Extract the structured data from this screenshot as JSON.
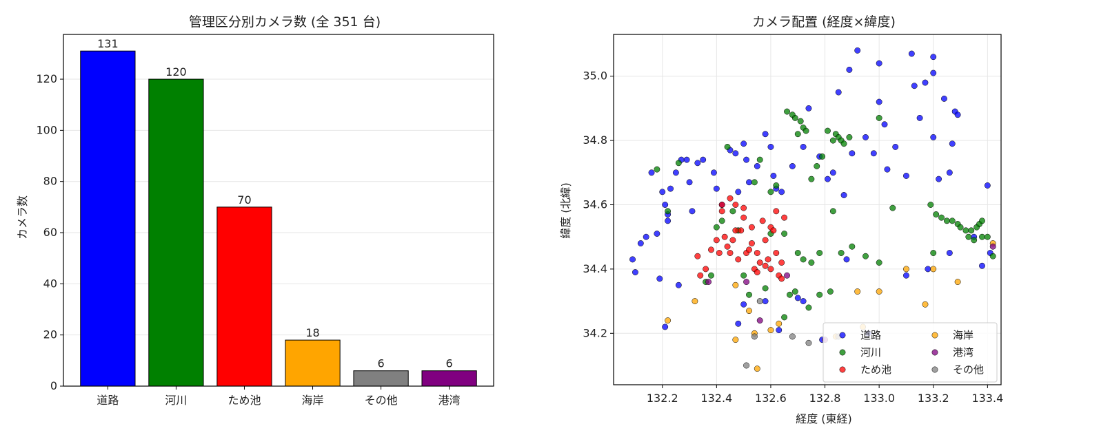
{
  "chart_data": [
    {
      "type": "bar",
      "title": "管理区分別カメラ数 (全 351 台)",
      "xlabel": "",
      "ylabel": "カメラ数",
      "categories": [
        "道路",
        "河川",
        "ため池",
        "海岸",
        "その他",
        "港湾"
      ],
      "values": [
        131,
        120,
        70,
        18,
        6,
        6
      ],
      "colors": [
        "#0000ff",
        "#008000",
        "#ff0000",
        "#ffa500",
        "#808080",
        "#800080"
      ],
      "ylim": [
        0,
        137.5
      ],
      "yticks": [
        0,
        20,
        40,
        60,
        80,
        100,
        120
      ],
      "grid": "y"
    },
    {
      "type": "scatter",
      "title": "カメラ配置 (経度×緯度)",
      "xlabel": "経度 (東経)",
      "ylabel": "緯度 (北緯)",
      "xlim": [
        132.02,
        133.45
      ],
      "ylim": [
        34.04,
        35.13
      ],
      "xticks": [
        132.2,
        132.4,
        132.6,
        132.8,
        133.0,
        133.2,
        133.4
      ],
      "yticks": [
        34.2,
        34.4,
        34.6,
        34.8,
        35.0
      ],
      "xtick_labels": [
        "132.2",
        "132.4",
        "132.6",
        "132.8",
        "133.0",
        "133.2",
        "133.4"
      ],
      "ytick_labels": [
        "34.2",
        "34.4",
        "34.6",
        "34.8",
        "35.0"
      ],
      "grid": "both",
      "legend_position": "lower-right",
      "series": [
        {
          "name": "道路",
          "color": "#0000ff",
          "points": [
            [
              132.09,
              34.43
            ],
            [
              132.1,
              34.39
            ],
            [
              132.12,
              34.48
            ],
            [
              132.14,
              34.5
            ],
            [
              132.16,
              34.7
            ],
            [
              132.18,
              34.51
            ],
            [
              132.2,
              34.64
            ],
            [
              132.21,
              34.6
            ],
            [
              132.22,
              34.57
            ],
            [
              132.22,
              34.55
            ],
            [
              132.23,
              34.65
            ],
            [
              132.25,
              34.7
            ],
            [
              132.27,
              34.74
            ],
            [
              132.29,
              34.74
            ],
            [
              132.3,
              34.67
            ],
            [
              132.31,
              34.58
            ],
            [
              132.33,
              34.73
            ],
            [
              132.35,
              34.74
            ],
            [
              132.39,
              34.7
            ],
            [
              132.4,
              34.65
            ],
            [
              132.42,
              34.6
            ],
            [
              132.45,
              34.77
            ],
            [
              132.47,
              34.76
            ],
            [
              132.48,
              34.64
            ],
            [
              132.5,
              34.79
            ],
            [
              132.51,
              34.74
            ],
            [
              132.52,
              34.67
            ],
            [
              132.55,
              34.72
            ],
            [
              132.58,
              34.82
            ],
            [
              132.6,
              34.78
            ],
            [
              132.61,
              34.69
            ],
            [
              132.62,
              34.65
            ],
            [
              132.64,
              34.64
            ],
            [
              132.68,
              34.72
            ],
            [
              132.72,
              34.78
            ],
            [
              132.74,
              34.9
            ],
            [
              132.78,
              34.75
            ],
            [
              132.81,
              34.68
            ],
            [
              132.83,
              34.7
            ],
            [
              132.85,
              34.95
            ],
            [
              132.87,
              34.63
            ],
            [
              132.89,
              35.02
            ],
            [
              132.9,
              34.76
            ],
            [
              132.92,
              35.08
            ],
            [
              132.95,
              34.81
            ],
            [
              132.98,
              34.76
            ],
            [
              133.0,
              35.04
            ],
            [
              133.0,
              34.92
            ],
            [
              133.02,
              34.85
            ],
            [
              133.03,
              34.71
            ],
            [
              133.06,
              34.78
            ],
            [
              133.1,
              34.69
            ],
            [
              133.12,
              35.07
            ],
            [
              133.13,
              34.97
            ],
            [
              133.15,
              34.87
            ],
            [
              133.17,
              34.98
            ],
            [
              133.2,
              35.06
            ],
            [
              133.2,
              35.01
            ],
            [
              133.2,
              34.81
            ],
            [
              133.22,
              34.68
            ],
            [
              133.24,
              34.93
            ],
            [
              133.26,
              34.7
            ],
            [
              133.27,
              34.79
            ],
            [
              133.28,
              34.89
            ],
            [
              133.29,
              34.88
            ],
            [
              133.35,
              34.5
            ],
            [
              133.38,
              34.41
            ],
            [
              133.4,
              34.66
            ],
            [
              133.41,
              34.45
            ],
            [
              132.26,
              34.35
            ],
            [
              132.19,
              34.37
            ],
            [
              132.21,
              34.22
            ],
            [
              132.48,
              34.23
            ],
            [
              132.5,
              34.29
            ],
            [
              132.58,
              34.3
            ],
            [
              132.63,
              34.21
            ],
            [
              132.7,
              34.31
            ],
            [
              132.72,
              34.3
            ],
            [
              132.79,
              34.18
            ],
            [
              132.88,
              34.43
            ],
            [
              132.96,
              34.2
            ],
            [
              133.1,
              34.38
            ],
            [
              133.18,
              34.4
            ],
            [
              133.26,
              34.45
            ]
          ]
        },
        {
          "name": "河川",
          "color": "#008000",
          "points": [
            [
              132.18,
              34.71
            ],
            [
              132.22,
              34.58
            ],
            [
              132.26,
              34.73
            ],
            [
              132.36,
              34.36
            ],
            [
              132.4,
              34.53
            ],
            [
              132.42,
              34.55
            ],
            [
              132.44,
              34.78
            ],
            [
              132.46,
              34.58
            ],
            [
              132.48,
              34.52
            ],
            [
              132.5,
              34.38
            ],
            [
              132.52,
              34.32
            ],
            [
              132.54,
              34.67
            ],
            [
              132.56,
              34.74
            ],
            [
              132.58,
              34.34
            ],
            [
              132.6,
              34.64
            ],
            [
              132.62,
              34.66
            ],
            [
              132.65,
              34.51
            ],
            [
              132.66,
              34.89
            ],
            [
              132.68,
              34.88
            ],
            [
              132.69,
              34.87
            ],
            [
              132.7,
              34.82
            ],
            [
              132.71,
              34.86
            ],
            [
              132.72,
              34.84
            ],
            [
              132.73,
              34.83
            ],
            [
              132.75,
              34.68
            ],
            [
              132.77,
              34.72
            ],
            [
              132.79,
              34.75
            ],
            [
              132.81,
              34.83
            ],
            [
              132.83,
              34.8
            ],
            [
              132.84,
              34.82
            ],
            [
              132.85,
              34.81
            ],
            [
              132.86,
              34.8
            ],
            [
              132.87,
              34.79
            ],
            [
              132.89,
              34.81
            ],
            [
              132.7,
              34.45
            ],
            [
              132.72,
              34.43
            ],
            [
              132.75,
              34.42
            ],
            [
              132.78,
              34.45
            ],
            [
              132.82,
              34.33
            ],
            [
              132.86,
              34.45
            ],
            [
              132.9,
              34.47
            ],
            [
              132.95,
              34.44
            ],
            [
              133.0,
              34.42
            ],
            [
              133.0,
              34.87
            ],
            [
              133.05,
              34.59
            ],
            [
              133.19,
              34.6
            ],
            [
              133.21,
              34.57
            ],
            [
              133.23,
              34.56
            ],
            [
              133.25,
              34.55
            ],
            [
              133.27,
              34.55
            ],
            [
              133.29,
              34.54
            ],
            [
              133.3,
              34.53
            ],
            [
              133.32,
              34.52
            ],
            [
              133.34,
              34.52
            ],
            [
              133.36,
              34.53
            ],
            [
              133.37,
              34.54
            ],
            [
              133.38,
              34.55
            ],
            [
              133.38,
              34.5
            ],
            [
              133.4,
              34.5
            ],
            [
              133.42,
              34.44
            ],
            [
              133.35,
              34.49
            ],
            [
              133.33,
              34.5
            ],
            [
              132.65,
              34.25
            ],
            [
              132.67,
              34.32
            ],
            [
              132.69,
              34.33
            ],
            [
              132.74,
              34.28
            ],
            [
              132.78,
              34.32
            ],
            [
              132.83,
              34.58
            ],
            [
              132.6,
              34.51
            ],
            [
              132.38,
              34.38
            ],
            [
              133.2,
              34.45
            ]
          ]
        },
        {
          "name": "ため池",
          "color": "#ff0000",
          "points": [
            [
              132.33,
              34.44
            ],
            [
              132.34,
              34.38
            ],
            [
              132.36,
              34.4
            ],
            [
              132.38,
              34.46
            ],
            [
              132.4,
              34.49
            ],
            [
              132.41,
              34.45
            ],
            [
              132.42,
              34.6
            ],
            [
              132.43,
              34.5
            ],
            [
              132.44,
              34.47
            ],
            [
              132.45,
              34.45
            ],
            [
              132.46,
              34.49
            ],
            [
              132.47,
              34.6
            ],
            [
              132.48,
              34.43
            ],
            [
              132.49,
              34.52
            ],
            [
              132.5,
              34.56
            ],
            [
              132.51,
              34.45
            ],
            [
              132.52,
              34.46
            ],
            [
              132.53,
              34.48
            ],
            [
              132.54,
              34.4
            ],
            [
              132.55,
              34.39
            ],
            [
              132.56,
              34.42
            ],
            [
              132.57,
              34.55
            ],
            [
              132.58,
              34.49
            ],
            [
              132.59,
              34.43
            ],
            [
              132.6,
              34.53
            ],
            [
              132.61,
              34.52
            ],
            [
              132.62,
              34.58
            ],
            [
              132.63,
              34.38
            ],
            [
              132.64,
              34.37
            ],
            [
              132.65,
              34.56
            ],
            [
              132.53,
              34.53
            ],
            [
              132.5,
              34.59
            ],
            [
              132.45,
              34.62
            ],
            [
              132.42,
              34.58
            ],
            [
              132.47,
              34.52
            ],
            [
              132.55,
              34.45
            ],
            [
              132.58,
              34.41
            ],
            [
              132.6,
              34.4
            ],
            [
              132.62,
              34.45
            ],
            [
              132.64,
              34.42
            ]
          ]
        },
        {
          "name": "海岸",
          "color": "#ffa500",
          "points": [
            [
              132.22,
              34.24
            ],
            [
              132.32,
              34.3
            ],
            [
              132.47,
              34.35
            ],
            [
              132.47,
              34.18
            ],
            [
              132.52,
              34.27
            ],
            [
              132.54,
              34.2
            ],
            [
              132.55,
              34.09
            ],
            [
              132.6,
              34.21
            ],
            [
              132.63,
              34.23
            ],
            [
              132.84,
              34.19
            ],
            [
              132.92,
              34.33
            ],
            [
              132.94,
              34.22
            ],
            [
              133.0,
              34.33
            ],
            [
              133.1,
              34.4
            ],
            [
              133.17,
              34.29
            ],
            [
              133.2,
              34.4
            ],
            [
              133.29,
              34.36
            ],
            [
              133.42,
              34.48
            ]
          ]
        },
        {
          "name": "港湾",
          "color": "#800080",
          "points": [
            [
              132.37,
              34.36
            ],
            [
              132.51,
              34.36
            ],
            [
              132.56,
              34.24
            ],
            [
              132.66,
              34.38
            ],
            [
              132.8,
              34.18
            ],
            [
              133.42,
              34.47
            ]
          ]
        },
        {
          "name": "その他",
          "color": "#808080",
          "points": [
            [
              132.51,
              34.1
            ],
            [
              132.54,
              34.19
            ],
            [
              132.56,
              34.3
            ],
            [
              132.68,
              34.19
            ],
            [
              132.74,
              34.17
            ],
            [
              132.85,
              34.19
            ]
          ]
        }
      ]
    }
  ]
}
